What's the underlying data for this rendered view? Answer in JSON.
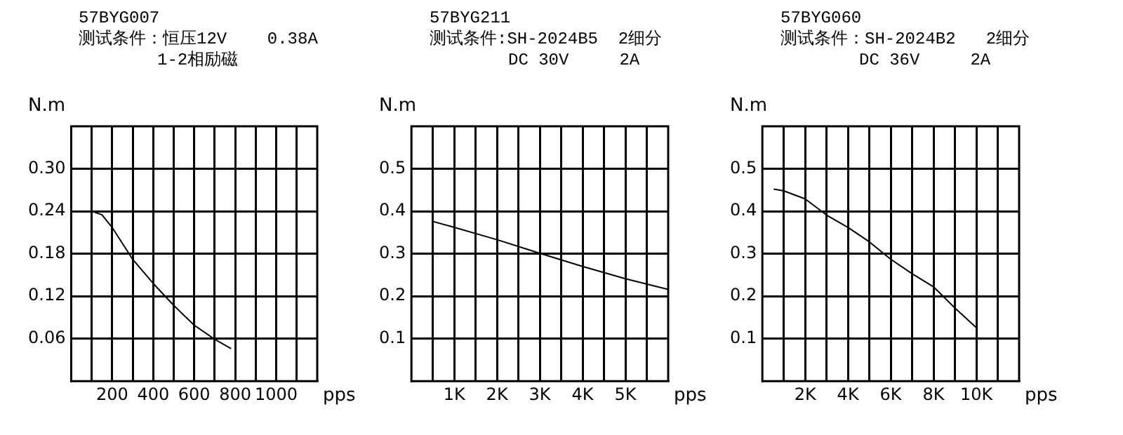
{
  "chart_data": [
    {
      "type": "line",
      "title": "57BYG007",
      "subtitle": "测试条件：恒压12V    0.38A",
      "annotations": [
        "1-2相励磁"
      ],
      "xlabel": "pps",
      "ylabel": "N.m",
      "legend": false,
      "grid": true,
      "marker": "none",
      "line_style": "solid",
      "xlim": [
        0,
        1200
      ],
      "xticks": [
        {
          "value": 100,
          "label": null
        },
        200,
        {
          "value": 300,
          "label": null
        },
        400,
        {
          "value": 500,
          "label": null
        },
        600,
        {
          "value": 700,
          "label": null
        },
        800,
        {
          "value": 900,
          "label": null
        },
        1000,
        {
          "value": 1100,
          "label": null
        }
      ],
      "ylim": [
        0,
        0.36
      ],
      "yticks": [
        {
          "value": 0.06,
          "label": "0.06"
        },
        {
          "value": 0.12,
          "label": "0.12"
        },
        {
          "value": 0.18,
          "label": "0.18"
        },
        {
          "value": 0.24,
          "label": "0.24"
        },
        {
          "value": 0.3,
          "label": "0.30"
        }
      ],
      "series": [
        {
          "color": "#000000",
          "x": [
            100,
            150,
            200,
            300,
            400,
            500,
            600,
            700,
            780
          ],
          "values": [
            0.24,
            0.235,
            0.217,
            0.172,
            0.138,
            0.107,
            0.079,
            0.059,
            0.046
          ]
        }
      ]
    },
    {
      "type": "line",
      "title": "57BYG211",
      "subtitle": "测试条件:SH-2024B5  2细分",
      "annotations": [
        "DC 30V     2A"
      ],
      "xlabel": "pps",
      "ylabel": "N.m",
      "legend": false,
      "grid": true,
      "marker": "none",
      "line_style": "solid",
      "xlim": [
        0,
        6000
      ],
      "xticks": [
        {
          "value": 500,
          "label": null
        },
        {
          "value": 1000,
          "label": "1K"
        },
        {
          "value": 1500,
          "label": null
        },
        {
          "value": 2000,
          "label": "2K"
        },
        {
          "value": 2500,
          "label": null
        },
        {
          "value": 3000,
          "label": "3K"
        },
        {
          "value": 3500,
          "label": null
        },
        {
          "value": 4000,
          "label": "4K"
        },
        {
          "value": 4500,
          "label": null
        },
        {
          "value": 5000,
          "label": "5K"
        },
        {
          "value": 5500,
          "label": null
        }
      ],
      "ylim": [
        0,
        0.6
      ],
      "yticks": [
        0.1,
        0.2,
        0.3,
        0.4,
        0.5
      ],
      "series": [
        {
          "color": "#000000",
          "x": [
            500,
            1000,
            2000,
            3000,
            4000,
            5000,
            6000
          ],
          "values": [
            0.376,
            0.362,
            0.333,
            0.301,
            0.27,
            0.241,
            0.216
          ]
        }
      ]
    },
    {
      "type": "line",
      "title": "57BYG060",
      "subtitle": "测试条件：SH-2024B2   2细分",
      "annotations": [
        "DC 36V     2A"
      ],
      "xlabel": "pps",
      "ylabel": "N.m",
      "legend": false,
      "grid": true,
      "marker": "none",
      "line_style": "solid",
      "xlim": [
        0,
        12000
      ],
      "xticks": [
        {
          "value": 1000,
          "label": null
        },
        {
          "value": 2000,
          "label": "2K"
        },
        {
          "value": 3000,
          "label": null
        },
        {
          "value": 4000,
          "label": "4K"
        },
        {
          "value": 5000,
          "label": null
        },
        {
          "value": 6000,
          "label": "6K"
        },
        {
          "value": 7000,
          "label": null
        },
        {
          "value": 8000,
          "label": "8K"
        },
        {
          "value": 9000,
          "label": null
        },
        {
          "value": 10000,
          "label": "10K"
        },
        {
          "value": 11000,
          "label": null
        }
      ],
      "ylim": [
        0,
        0.6
      ],
      "yticks": [
        0.1,
        0.2,
        0.3,
        0.4,
        0.5
      ],
      "series": [
        {
          "color": "#000000",
          "x": [
            530,
            1000,
            2000,
            3000,
            4000,
            5000,
            6000,
            7000,
            8000,
            9000,
            10000
          ],
          "values": [
            0.452,
            0.448,
            0.429,
            0.391,
            0.362,
            0.328,
            0.287,
            0.253,
            0.222,
            0.172,
            0.126
          ]
        }
      ]
    }
  ]
}
